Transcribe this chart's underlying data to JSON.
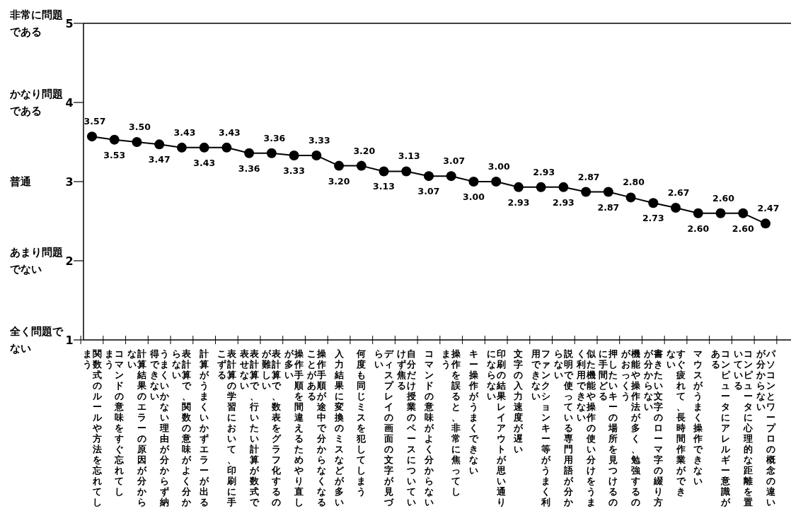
{
  "chart_data": {
    "type": "line",
    "categories": [
      "関数式のルールや方法を忘れてしまう",
      "コマンドの意味をすぐ忘れてしまう",
      "計算結果のエラーの原因が分からない",
      "うまくいかない理由が分からず納得できない",
      "表計算で、関数の意味がよく分からない",
      "計算がうまくいかずエラーが出る",
      "表計算の学習において、印刷に手こずる",
      "表計算で、行いたい計算が数式で表せない",
      "表計算で、数表をグラフ化するのが難しい",
      "操作手順を間違えるためやり直しが多い",
      "操作手順が途中で分からなくなることがある",
      "入力結果に変換のミスなどが多い",
      "何度も同じミスを犯してしまう",
      "ディスプレイの画面の文字が見づらい",
      "自分だけ授業のペースについていけず焦る",
      "コマンドの意味がよく分からない",
      "操作を誤ると、非常に焦ってしまう",
      "キー操作がうまくできない",
      "印刷の結果レイアウトが思い通りにならない",
      "文字の入力速度が遅い",
      "ファンクションキー等がうまく利用できない",
      "説明で使っている専門用語が分からない",
      "似た機能や操作の使い分けをうまく利用できない",
      "押したいキーの場所を見つけるのに手間どる",
      "機能や操作法が多く、勉強するのがおっくう",
      "書きたい文字のローマ字の綴り方が分からない",
      "すぐ疲れて、長時間作業ができない",
      "マウスがうまく操作できない",
      "コンピュータにアレルギー意識がある",
      "コンピュータに心理的な距離を置いている",
      "パソコンとワープロの概念の違いが分からない"
    ],
    "series": [
      {
        "color": "#000000",
        "values": [
          3.57,
          3.53,
          3.5,
          3.47,
          3.43,
          3.43,
          3.43,
          3.36,
          3.36,
          3.33,
          3.33,
          3.2,
          3.2,
          3.13,
          3.13,
          3.07,
          3.07,
          3.0,
          3.0,
          2.93,
          2.93,
          2.93,
          2.87,
          2.87,
          2.8,
          2.73,
          2.67,
          2.6,
          2.6,
          2.6,
          2.47
        ],
        "value_labels": [
          "3.57",
          "3.53",
          "3.50",
          "3.47",
          "3.43",
          "3.43",
          "3.43",
          "3.36",
          "3.36",
          "3.33",
          "3.33",
          "3.20",
          "3.20",
          "3.13",
          "3.13",
          "3.07",
          "3.07",
          "3.00",
          "3.00",
          "2.93",
          "2.93",
          "2.93",
          "2.87",
          "2.87",
          "2.80",
          "2.73",
          "2.67",
          "2.60",
          "2.60",
          "2.60",
          "2.47"
        ]
      }
    ],
    "ylim": [
      1,
      5
    ],
    "yticks": [
      1,
      2,
      3,
      4,
      5
    ],
    "annotations": [
      "全く問題でない",
      "あまり問題でない",
      "普通",
      "かなり問題である",
      "非常に問題である"
    ],
    "marker": "circle",
    "line_style": "solid",
    "grid": false
  }
}
